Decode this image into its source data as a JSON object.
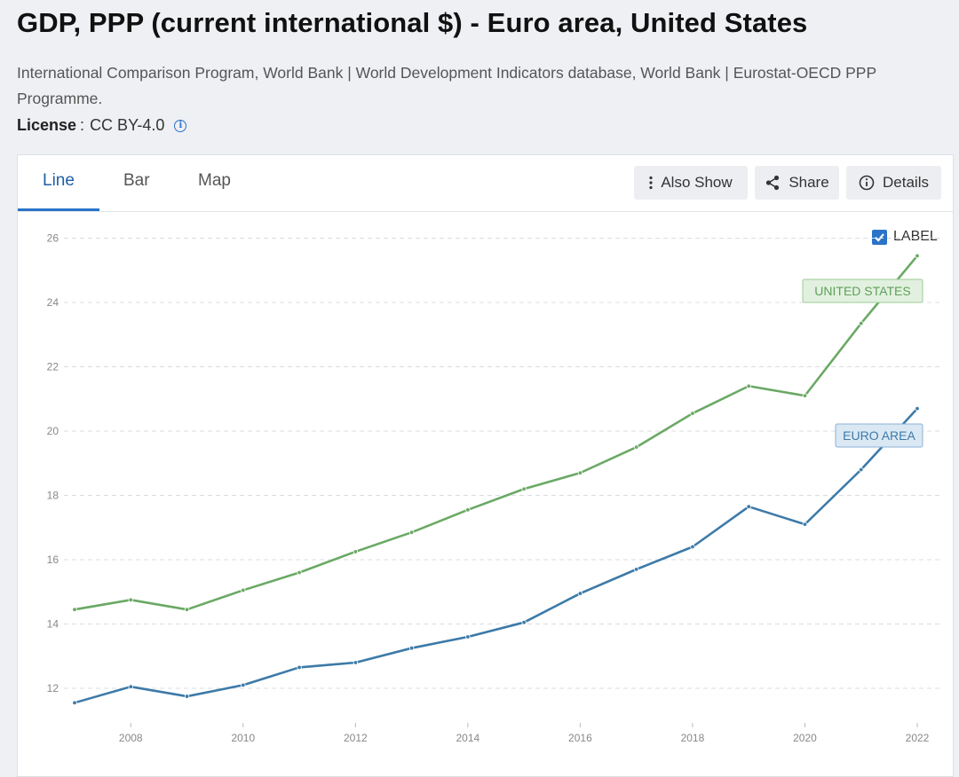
{
  "header": {
    "title": "GDP, PPP (current international $) - Euro area, United States",
    "source": "International Comparison Program, World Bank | World Development Indicators database, World Bank | Eurostat-OECD PPP Programme.",
    "license_label": "License",
    "license_sep": ":",
    "license_value": "CC BY-4.0"
  },
  "tabs": [
    {
      "label": "Line",
      "active": true
    },
    {
      "label": "Bar",
      "active": false
    },
    {
      "label": "Map",
      "active": false
    }
  ],
  "toolbar": {
    "also_show": "Also Show",
    "share": "Share",
    "details": "Details"
  },
  "label_toggle": {
    "text": "LABEL",
    "checked": true
  },
  "colors": {
    "united_states": "#6aa964",
    "euro_area": "#3d7aa8",
    "accent": "#2a73c9"
  },
  "chart_data": {
    "type": "line",
    "x": [
      2007,
      2008,
      2009,
      2010,
      2011,
      2012,
      2013,
      2014,
      2015,
      2016,
      2017,
      2018,
      2019,
      2020,
      2021,
      2022
    ],
    "x_ticks": [
      "2008",
      "2010",
      "2012",
      "2014",
      "2016",
      "2018",
      "2020",
      "2022"
    ],
    "y_ticks": [
      "12",
      "14",
      "16",
      "18",
      "20",
      "22",
      "24",
      "26"
    ],
    "ylim": [
      11.2,
      26.4
    ],
    "grid": true,
    "series": [
      {
        "name": "UNITED STATES",
        "color": "#6aa964",
        "values": [
          14.45,
          14.75,
          14.45,
          15.05,
          15.6,
          16.25,
          16.85,
          17.55,
          18.2,
          18.7,
          19.5,
          20.55,
          21.4,
          21.1,
          23.35,
          25.45
        ]
      },
      {
        "name": "EURO AREA",
        "color": "#3d7aa8",
        "values": [
          11.55,
          12.05,
          11.75,
          12.1,
          12.65,
          12.8,
          13.25,
          13.6,
          14.05,
          14.95,
          15.7,
          16.4,
          17.65,
          17.1,
          18.8,
          20.7
        ]
      }
    ]
  }
}
